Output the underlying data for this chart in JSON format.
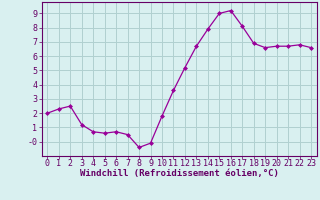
{
  "x": [
    0,
    1,
    2,
    3,
    4,
    5,
    6,
    7,
    8,
    9,
    10,
    11,
    12,
    13,
    14,
    15,
    16,
    17,
    18,
    19,
    20,
    21,
    22,
    23
  ],
  "y": [
    2.0,
    2.3,
    2.5,
    1.2,
    0.7,
    0.6,
    0.7,
    0.5,
    -0.4,
    -0.1,
    1.8,
    3.6,
    5.2,
    6.7,
    7.9,
    9.0,
    9.2,
    8.1,
    6.9,
    6.6,
    6.7,
    6.7,
    6.8,
    6.6
  ],
  "line_color": "#990099",
  "marker": "D",
  "marker_size": 2.0,
  "bg_color": "#d9f0f0",
  "grid_color": "#b0d0d0",
  "xlabel": "Windchill (Refroidissement éolien,°C)",
  "xlim": [
    -0.5,
    23.5
  ],
  "ylim": [
    -1.0,
    9.8
  ],
  "yticks": [
    0,
    1,
    2,
    3,
    4,
    5,
    6,
    7,
    8,
    9
  ],
  "ytick_labels": [
    "-0",
    "1",
    "2",
    "3",
    "4",
    "5",
    "6",
    "7",
    "8",
    "9"
  ],
  "xtick_labels": [
    "0",
    "1",
    "2",
    "3",
    "4",
    "5",
    "6",
    "7",
    "8",
    "9",
    "10",
    "11",
    "12",
    "13",
    "14",
    "15",
    "16",
    "17",
    "18",
    "19",
    "20",
    "21",
    "22",
    "23"
  ],
  "tick_color": "#660066",
  "label_color": "#660066",
  "spine_color": "#660066",
  "xlabel_fontsize": 6.5,
  "tick_fontsize": 6.0,
  "line_width": 0.9
}
